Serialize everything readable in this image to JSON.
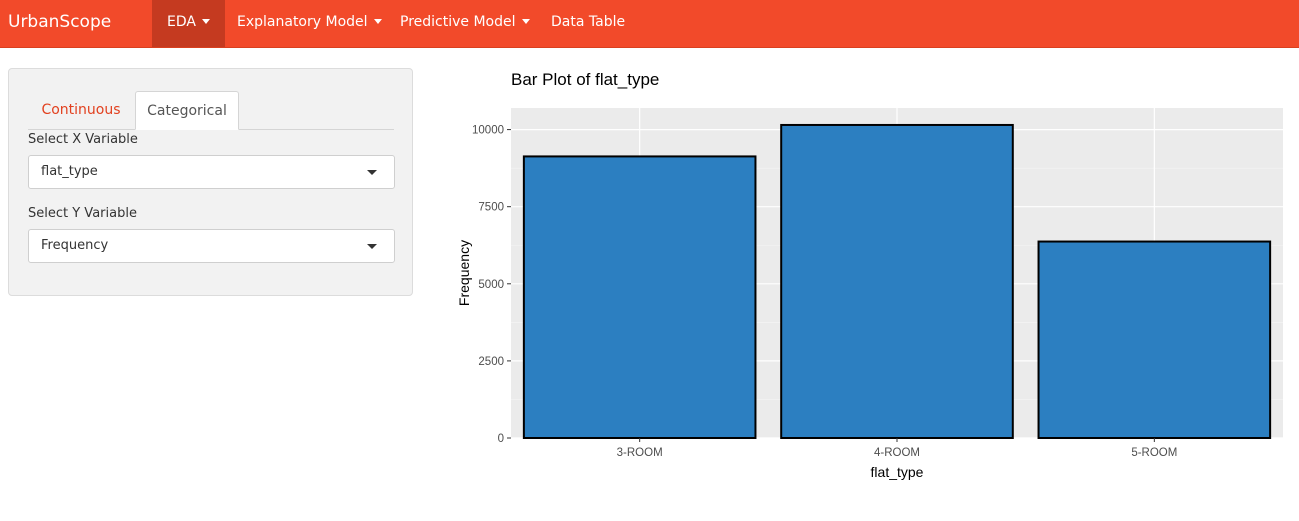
{
  "app": {
    "brand": "UrbanScope"
  },
  "nav": {
    "items": [
      {
        "label": "EDA",
        "dropdown": true,
        "active": true
      },
      {
        "label": "Explanatory Model",
        "dropdown": true,
        "active": false
      },
      {
        "label": "Predictive Model",
        "dropdown": true,
        "active": false
      },
      {
        "label": "Data Table",
        "dropdown": false,
        "active": false
      }
    ]
  },
  "sidebar": {
    "tabs": [
      {
        "label": "Continuous",
        "active": false
      },
      {
        "label": "Categorical",
        "active": true
      }
    ],
    "x_select": {
      "label": "Select X Variable",
      "value": "flat_type"
    },
    "y_select": {
      "label": "Select Y Variable",
      "value": "Frequency"
    }
  },
  "colors": {
    "navbar": "#f24a2a",
    "nav_active": "#c53a20",
    "tab_link": "#e2411f",
    "bar_fill": "#2c7fc1",
    "panel_bg": "#ebebeb"
  },
  "chart_data": {
    "type": "bar",
    "title": "Bar Plot of flat_type",
    "xlabel": "flat_type",
    "ylabel": "Frequency",
    "categories": [
      "3-ROOM",
      "4-ROOM",
      "5-ROOM"
    ],
    "values": [
      9130,
      10150,
      6370
    ],
    "ylim": [
      0,
      10700
    ],
    "yticks": [
      0,
      2500,
      5000,
      7500,
      10000
    ],
    "grid": true
  }
}
